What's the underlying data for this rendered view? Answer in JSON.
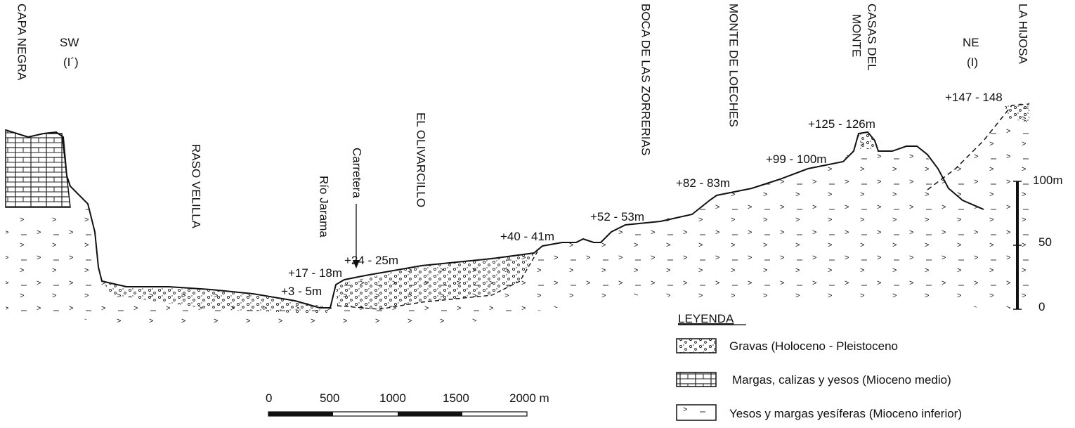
{
  "header": {
    "sw": "SW",
    "sw_code": "(I´)",
    "ne": "NE",
    "ne_code": "(I)"
  },
  "places": [
    "CAPA NEGRA",
    "RASO VELILLA",
    "Río Jarama",
    "Carretera",
    "EL OLIVARCILLO",
    "BOCA DE LAS ZORRERIAS",
    "MONTE DE LOECHES",
    "CASAS DEL",
    "MONTE",
    "LA HIJOSA"
  ],
  "terraces": [
    "+3 - 5m",
    "+17 - 18m",
    "+24 - 25m",
    "+40 - 41m",
    "+52 - 53m",
    "+82 - 83m",
    "+99 - 100m",
    "+125 - 126m",
    "+147 - 148"
  ],
  "vertical_scale": {
    "labels": [
      "100m",
      "50",
      "0"
    ]
  },
  "horizontal_scale": {
    "labels": [
      "0",
      "500",
      "1000",
      "1500",
      "2000 m"
    ]
  },
  "legend": {
    "title": "LEYENDA",
    "items": [
      "Gravas (Holoceno - Pleistoceno",
      "Margas, calizas y yesos (Mioceno medio)",
      "Yesos y margas yesíferas (Mioceno inferior)"
    ]
  }
}
